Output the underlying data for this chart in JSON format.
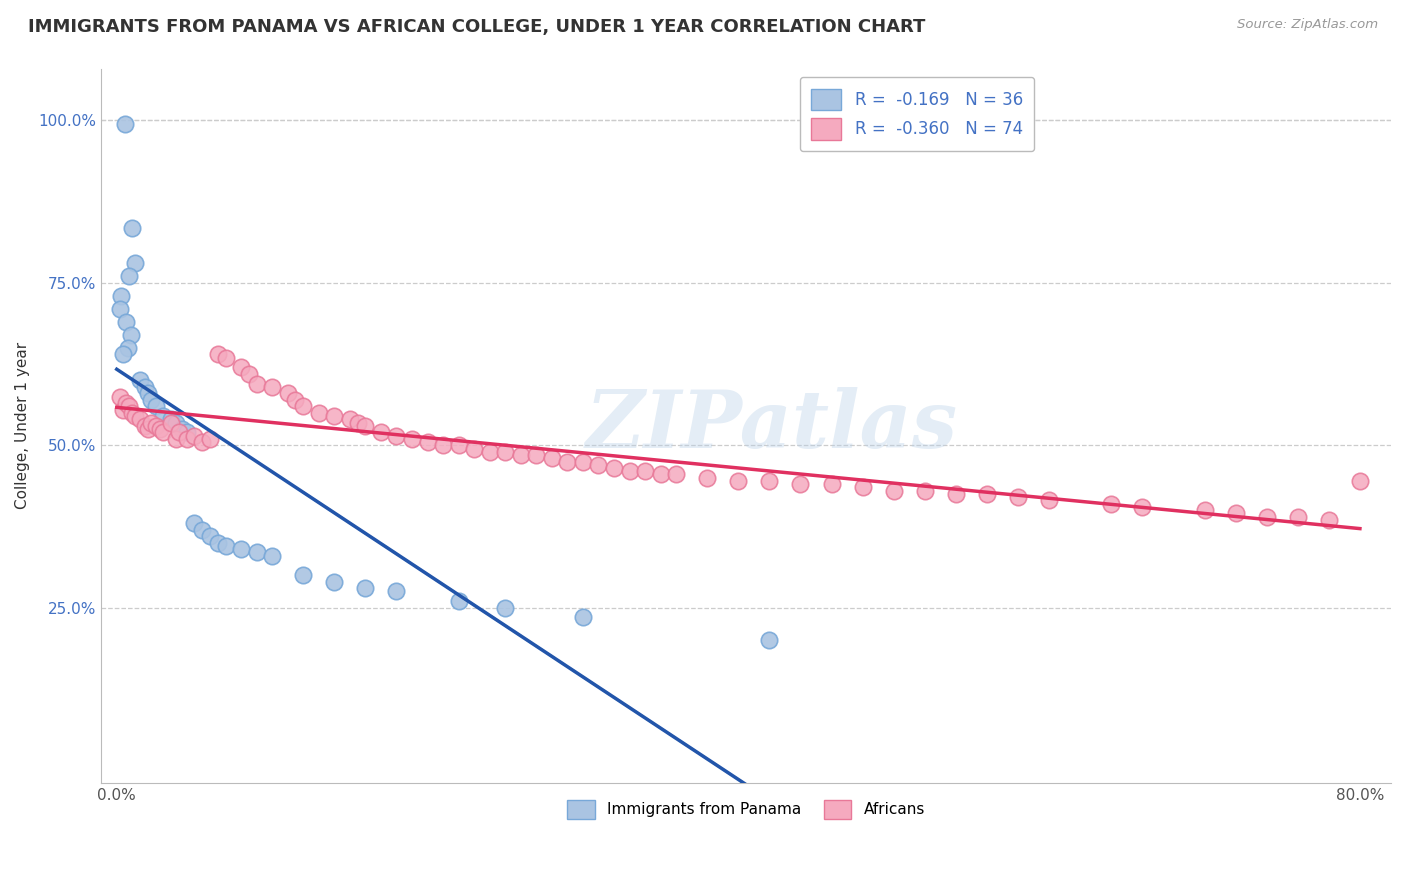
{
  "title": "IMMIGRANTS FROM PANAMA VS AFRICAN COLLEGE, UNDER 1 YEAR CORRELATION CHART",
  "source_text": "Source: ZipAtlas.com",
  "ylabel": "College, Under 1 year",
  "xlim": [
    -0.01,
    0.82
  ],
  "ylim": [
    -0.02,
    1.08
  ],
  "xtick_pos": [
    0.0,
    0.8
  ],
  "xtick_labels": [
    "0.0%",
    "80.0%"
  ],
  "ytick_pos": [
    0.25,
    0.5,
    0.75,
    1.0
  ],
  "ytick_labels": [
    "25.0%",
    "50.0%",
    "75.0%",
    "100.0%"
  ],
  "legend_r1": "R =  -0.169   N = 36",
  "legend_r2": "R =  -0.360   N = 74",
  "legend_label1": "Immigrants from Panama",
  "legend_label2": "Africans",
  "blue_color": "#aac4e2",
  "pink_color": "#f5aabf",
  "blue_edge": "#78a8d8",
  "pink_edge": "#e87898",
  "trend_blue": "#2255aa",
  "trend_pink": "#e03060",
  "trend_dashed_color": "#88bbdd",
  "watermark": "ZIPatlas",
  "blue_x": [
    0.005,
    0.01,
    0.012,
    0.008,
    0.003,
    0.002,
    0.006,
    0.009,
    0.007,
    0.004,
    0.015,
    0.018,
    0.02,
    0.022,
    0.025,
    0.03,
    0.035,
    0.038,
    0.042,
    0.045,
    0.05,
    0.055,
    0.06,
    0.065,
    0.07,
    0.08,
    0.09,
    0.1,
    0.12,
    0.14,
    0.16,
    0.18,
    0.22,
    0.25,
    0.3,
    0.42
  ],
  "blue_y": [
    0.995,
    0.835,
    0.78,
    0.76,
    0.73,
    0.71,
    0.69,
    0.67,
    0.65,
    0.64,
    0.6,
    0.59,
    0.58,
    0.57,
    0.56,
    0.545,
    0.54,
    0.535,
    0.525,
    0.52,
    0.38,
    0.37,
    0.36,
    0.35,
    0.345,
    0.34,
    0.335,
    0.33,
    0.3,
    0.29,
    0.28,
    0.275,
    0.26,
    0.25,
    0.235,
    0.2
  ],
  "pink_x": [
    0.002,
    0.004,
    0.006,
    0.008,
    0.01,
    0.012,
    0.015,
    0.018,
    0.02,
    0.022,
    0.025,
    0.028,
    0.03,
    0.035,
    0.038,
    0.04,
    0.045,
    0.05,
    0.055,
    0.06,
    0.065,
    0.07,
    0.08,
    0.085,
    0.09,
    0.1,
    0.11,
    0.115,
    0.12,
    0.13,
    0.14,
    0.15,
    0.155,
    0.16,
    0.17,
    0.18,
    0.19,
    0.2,
    0.21,
    0.22,
    0.23,
    0.24,
    0.25,
    0.26,
    0.27,
    0.28,
    0.29,
    0.3,
    0.31,
    0.32,
    0.33,
    0.34,
    0.35,
    0.36,
    0.38,
    0.4,
    0.42,
    0.44,
    0.46,
    0.48,
    0.5,
    0.52,
    0.54,
    0.56,
    0.58,
    0.6,
    0.64,
    0.66,
    0.7,
    0.72,
    0.74,
    0.76,
    0.78,
    0.8
  ],
  "pink_y": [
    0.575,
    0.555,
    0.565,
    0.56,
    0.55,
    0.545,
    0.54,
    0.53,
    0.525,
    0.535,
    0.53,
    0.525,
    0.52,
    0.535,
    0.51,
    0.52,
    0.51,
    0.515,
    0.505,
    0.51,
    0.64,
    0.635,
    0.62,
    0.61,
    0.595,
    0.59,
    0.58,
    0.57,
    0.56,
    0.55,
    0.545,
    0.54,
    0.535,
    0.53,
    0.52,
    0.515,
    0.51,
    0.505,
    0.5,
    0.5,
    0.495,
    0.49,
    0.49,
    0.485,
    0.485,
    0.48,
    0.475,
    0.475,
    0.47,
    0.465,
    0.46,
    0.46,
    0.455,
    0.455,
    0.45,
    0.445,
    0.445,
    0.44,
    0.44,
    0.435,
    0.43,
    0.43,
    0.425,
    0.425,
    0.42,
    0.415,
    0.41,
    0.405,
    0.4,
    0.395,
    0.39,
    0.39,
    0.385,
    0.445
  ]
}
